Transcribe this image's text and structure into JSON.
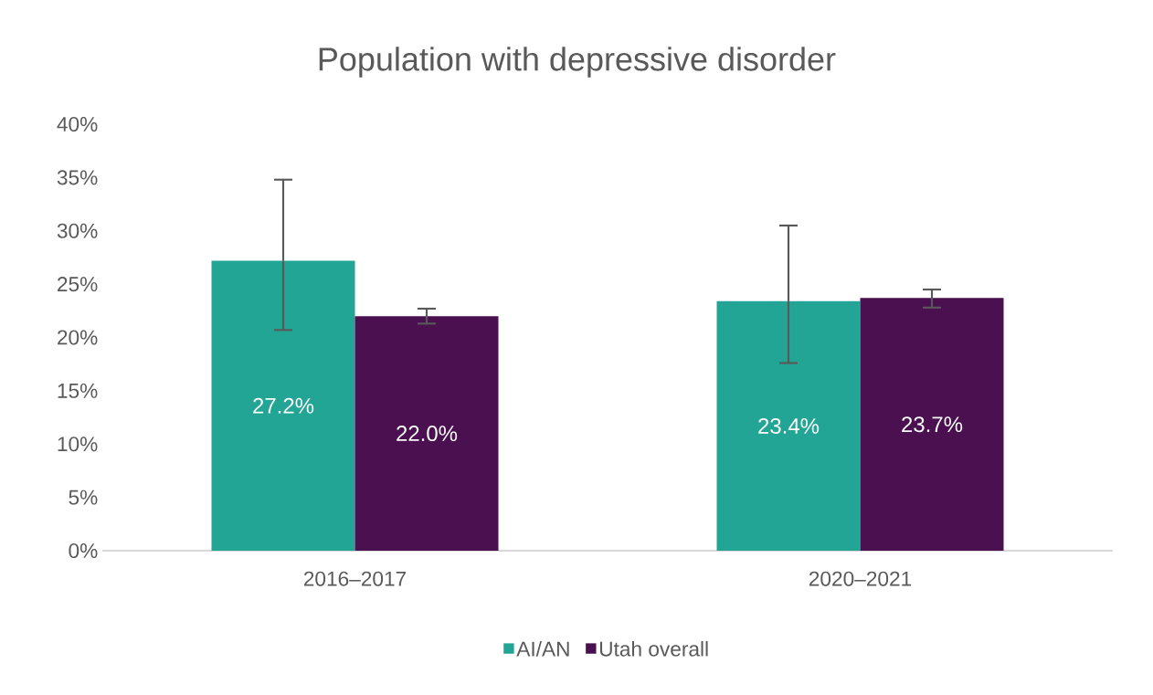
{
  "chart_data": {
    "type": "bar",
    "title": "Population with depressive disorder",
    "categories": [
      "2016–2017",
      "2020–2021"
    ],
    "series": [
      {
        "name": "AI/AN",
        "color": "#22a594",
        "values": [
          27.2,
          23.4
        ],
        "value_labels": [
          "27.2%",
          "23.4%"
        ],
        "errors": [
          [
            20.7,
            34.8
          ],
          [
            17.6,
            30.5
          ]
        ]
      },
      {
        "name": "Utah overall",
        "color": "#4a1050",
        "values": [
          22.0,
          23.7
        ],
        "value_labels": [
          "22.0%",
          "23.7%"
        ],
        "errors": [
          [
            21.3,
            22.7
          ],
          [
            22.8,
            24.5
          ]
        ]
      }
    ],
    "ylim": [
      0,
      40
    ],
    "yticks": [
      {
        "value": 0,
        "label": "0%"
      },
      {
        "value": 5,
        "label": "5%"
      },
      {
        "value": 10,
        "label": "10%"
      },
      {
        "value": 15,
        "label": "15%"
      },
      {
        "value": 20,
        "label": "20%"
      },
      {
        "value": 25,
        "label": "25%"
      },
      {
        "value": 30,
        "label": "30%"
      },
      {
        "value": 35,
        "label": "35%"
      },
      {
        "value": 40,
        "label": "40%"
      }
    ],
    "legend": "bottom"
  }
}
